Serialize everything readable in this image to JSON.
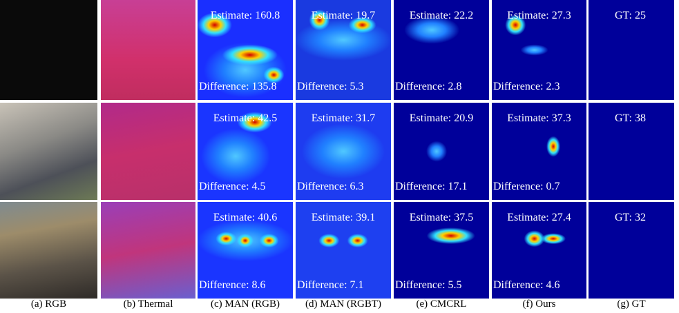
{
  "rows": [
    {
      "man_rgb": {
        "estimate": "Estimate: 160.8",
        "difference": "Difference: 135.8"
      },
      "man_rgbt": {
        "estimate": "Estimate: 19.7",
        "difference": "Difference: 5.3"
      },
      "cmcrl": {
        "estimate": "Estimate: 22.2",
        "difference": "Difference: 2.8"
      },
      "ours": {
        "estimate": "Estimate: 27.3",
        "difference": "Difference: 2.3"
      },
      "gt": "GT: 25"
    },
    {
      "man_rgb": {
        "estimate": "Estimate: 42.5",
        "difference": "Difference: 4.5"
      },
      "man_rgbt": {
        "estimate": "Estimate: 31.7",
        "difference": "Difference: 6.3"
      },
      "cmcrl": {
        "estimate": "Estimate: 20.9",
        "difference": "Difference: 17.1"
      },
      "ours": {
        "estimate": "Estimate: 37.3",
        "difference": "Difference: 0.7"
      },
      "gt": "GT: 38"
    },
    {
      "man_rgb": {
        "estimate": "Estimate: 40.6",
        "difference": "Difference: 8.6"
      },
      "man_rgbt": {
        "estimate": "Estimate: 39.1",
        "difference": "Difference: 7.1"
      },
      "cmcrl": {
        "estimate": "Estimate: 37.5",
        "difference": "Difference: 5.5"
      },
      "ours": {
        "estimate": "Estimate: 27.4",
        "difference": "Difference: 4.6"
      },
      "gt": "GT: 32"
    }
  ],
  "captions": [
    "(a) RGB",
    "(b) Thermal",
    "(c) MAN (RGB)",
    "(d) MAN (RGBT)",
    "(e) CMCRL",
    "(f) Ours",
    "(g) GT"
  ]
}
